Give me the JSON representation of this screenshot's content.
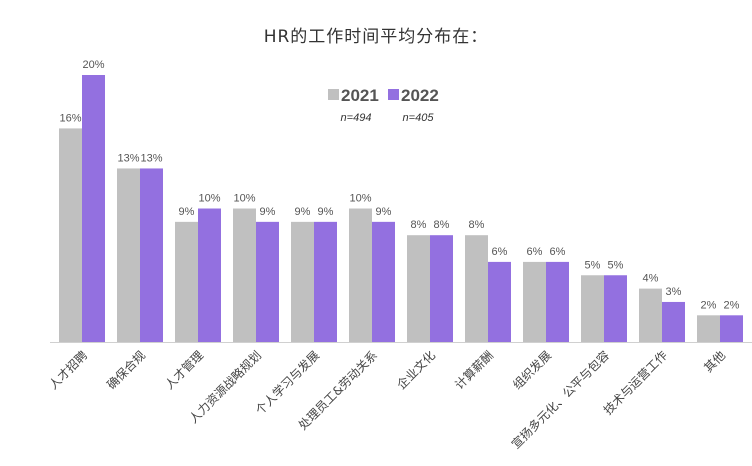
{
  "chart_data": {
    "type": "bar",
    "title": "HR的工作时间平均分布在：",
    "categories": [
      "人才招聘",
      "确保合规",
      "人才管理",
      "人力资源战略规划",
      "个人学习与发展",
      "处理员工&劳动关系",
      "企业文化",
      "计算薪酬",
      "组织发展",
      "宣扬多元化、公平与包容",
      "技术与运营工作",
      "其他"
    ],
    "series": [
      {
        "name": "2021",
        "sample": "n=494",
        "color": "#c0c0c0",
        "values": [
          16,
          13,
          9,
          10,
          9,
          10,
          8,
          8,
          6,
          5,
          4,
          2
        ]
      },
      {
        "name": "2022",
        "sample": "n=405",
        "color": "#9370e0",
        "values": [
          20,
          13,
          10,
          9,
          9,
          9,
          8,
          6,
          6,
          5,
          3,
          2
        ]
      }
    ],
    "value_suffix": "%",
    "ylim": [
      0,
      20
    ],
    "grid": false,
    "legend": "top-center"
  }
}
